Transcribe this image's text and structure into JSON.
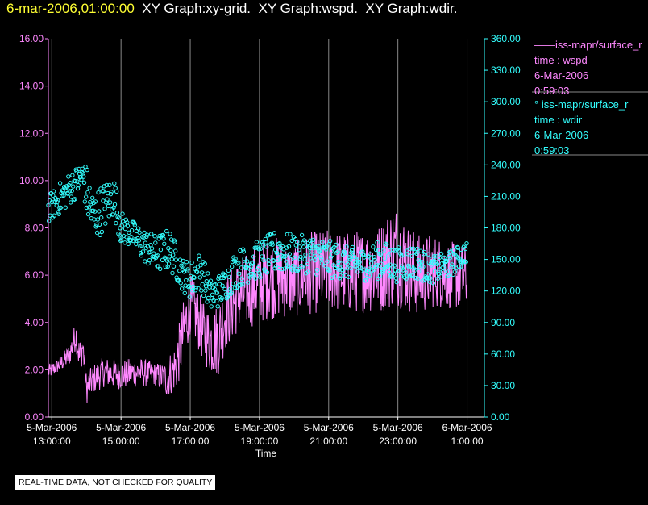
{
  "header": {
    "timestamp": "6-mar-2006,01:00:00",
    "graphs": [
      "XY Graph:xy-grid.",
      "XY Graph:wspd.",
      "XY Graph:wdir."
    ]
  },
  "legend": [
    {
      "marker": "——",
      "label": "iss-mapr/surface_r",
      "var": "time : wspd",
      "date": "6-Mar-2006",
      "time": "0:59:03"
    },
    {
      "marker": "°",
      "label": "iss-mapr/surface_r",
      "var": "time : wdir",
      "date": "6-Mar-2006",
      "time": "0:59:03"
    }
  ],
  "disclaimer": "REAL-TIME DATA, NOT CHECKED FOR QUALITY",
  "colors": {
    "wspd": "#ff88ff",
    "wdir": "#33ffff",
    "grid": "#888888",
    "axis_text": "#ffffff",
    "timestamp": "#ffff33"
  },
  "chart_data": {
    "type": "line",
    "xlabel": "Time",
    "xlim_hours": [
      12.9,
      25.5
    ],
    "x_ticks": [
      {
        "hour": 13,
        "date": "5-Mar-2006",
        "time": "13:00:00"
      },
      {
        "hour": 15,
        "date": "5-Mar-2006",
        "time": "15:00:00"
      },
      {
        "hour": 17,
        "date": "5-Mar-2006",
        "time": "17:00:00"
      },
      {
        "hour": 19,
        "date": "5-Mar-2006",
        "time": "19:00:00"
      },
      {
        "hour": 21,
        "date": "5-Mar-2006",
        "time": "21:00:00"
      },
      {
        "hour": 23,
        "date": "5-Mar-2006",
        "time": "23:00:00"
      },
      {
        "hour": 25,
        "date": "6-Mar-2006",
        "time": "1:00:00"
      }
    ],
    "y_left": {
      "name": "wspd",
      "ylim": [
        0,
        16
      ],
      "ticks": [
        "0.00",
        "2.00",
        "4.00",
        "6.00",
        "8.00",
        "10.00",
        "12.00",
        "14.00",
        "16.00"
      ]
    },
    "y_right": {
      "name": "wdir",
      "ylim": [
        0,
        360
      ],
      "ticks": [
        "0.00",
        "30.00",
        "60.00",
        "90.00",
        "120.00",
        "150.00",
        "180.00",
        "210.00",
        "240.00",
        "270.00",
        "300.00",
        "330.00",
        "360.00"
      ]
    },
    "series": [
      {
        "name": "wspd",
        "style": "line",
        "axis": "left",
        "anchors": [
          [
            12.9,
            1.9
          ],
          [
            13.2,
            2.2
          ],
          [
            13.5,
            2.6
          ],
          [
            13.7,
            3.5
          ],
          [
            13.8,
            2.5
          ],
          [
            13.9,
            3.0
          ],
          [
            14.0,
            1.2
          ],
          [
            14.2,
            1.6
          ],
          [
            14.5,
            1.9
          ],
          [
            15.0,
            1.8
          ],
          [
            15.5,
            1.9
          ],
          [
            16.0,
            1.8
          ],
          [
            16.3,
            1.6
          ],
          [
            16.6,
            2.2
          ],
          [
            16.8,
            3.5
          ],
          [
            17.0,
            4.8
          ],
          [
            17.2,
            4.2
          ],
          [
            17.4,
            3.5
          ],
          [
            17.6,
            3.2
          ],
          [
            17.8,
            3.3
          ],
          [
            18.0,
            4.3
          ],
          [
            18.3,
            5.0
          ],
          [
            18.6,
            5.3
          ],
          [
            19.0,
            5.7
          ],
          [
            19.5,
            5.9
          ],
          [
            20.0,
            5.8
          ],
          [
            20.5,
            6.1
          ],
          [
            21.0,
            6.2
          ],
          [
            21.5,
            6.1
          ],
          [
            22.0,
            6.2
          ],
          [
            22.5,
            6.3
          ],
          [
            22.8,
            6.8
          ],
          [
            23.0,
            6.9
          ],
          [
            23.3,
            6.3
          ],
          [
            23.6,
            6.0
          ],
          [
            24.0,
            6.2
          ],
          [
            24.5,
            6.0
          ],
          [
            25.0,
            5.9
          ]
        ],
        "noise": [
          0.2,
          0.2,
          0.3,
          0.4,
          0.5,
          0.4,
          0.4,
          0.4,
          0.4,
          0.4,
          0.4,
          0.3,
          0.5,
          0.7,
          0.9,
          0.8,
          0.8,
          0.8,
          0.9,
          1.0,
          1.0,
          1.0,
          1.0,
          1.1,
          1.1,
          1.0,
          1.1,
          1.1,
          1.1,
          1.1,
          1.2,
          1.4,
          1.4,
          1.2,
          1.1,
          1.0,
          0.9,
          0.9
        ]
      },
      {
        "name": "wdir",
        "style": "points",
        "axis": "right",
        "anchors": [
          [
            12.9,
            198
          ],
          [
            13.3,
            210
          ],
          [
            13.6,
            220
          ],
          [
            13.9,
            230
          ],
          [
            14.0,
            215
          ],
          [
            14.2,
            190
          ],
          [
            14.5,
            200
          ],
          [
            14.8,
            210
          ],
          [
            15.0,
            180
          ],
          [
            15.3,
            175
          ],
          [
            15.6,
            165
          ],
          [
            16.0,
            155
          ],
          [
            16.4,
            160
          ],
          [
            16.8,
            135
          ],
          [
            17.0,
            130
          ],
          [
            17.3,
            140
          ],
          [
            17.6,
            115
          ],
          [
            18.0,
            125
          ],
          [
            18.3,
            140
          ],
          [
            18.6,
            145
          ],
          [
            19.0,
            150
          ],
          [
            19.5,
            158
          ],
          [
            20.0,
            155
          ],
          [
            20.5,
            155
          ],
          [
            21.0,
            150
          ],
          [
            21.5,
            147
          ],
          [
            22.0,
            145
          ],
          [
            22.5,
            150
          ],
          [
            23.0,
            145
          ],
          [
            23.5,
            148
          ],
          [
            24.0,
            140
          ],
          [
            24.5,
            145
          ],
          [
            25.0,
            158
          ]
        ],
        "noise": [
          10,
          12,
          12,
          10,
          20,
          18,
          18,
          15,
          12,
          10,
          12,
          14,
          15,
          12,
          14,
          14,
          12,
          12,
          14,
          14,
          14,
          16,
          14,
          14,
          14,
          12,
          12,
          14,
          13,
          13,
          10,
          10,
          8
        ]
      }
    ]
  }
}
